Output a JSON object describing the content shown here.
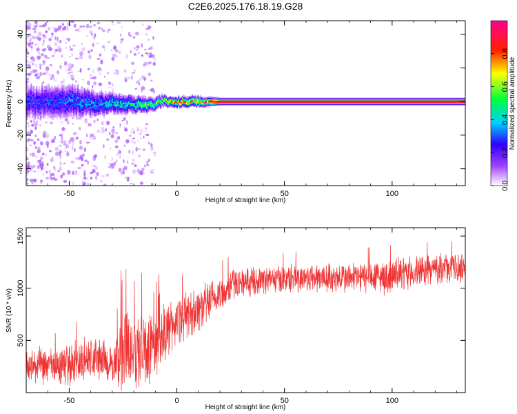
{
  "title": "C2E6.2025.176.18.19.G28",
  "colors": {
    "snr_line": "#ee3333",
    "spectrogram_background": "#ffffff",
    "axis": "#000000"
  },
  "colorbar": {
    "label": "Normalized spectral amplitude",
    "range": [
      0,
      1
    ],
    "tick_labels": [
      "0.0",
      "0.2",
      "0.4",
      "0.6",
      "0.8"
    ],
    "colormap": [
      "#ffffff",
      "#a040ff",
      "#3000ff",
      "#00d0ff",
      "#00ff40",
      "#ffff00",
      "#ff2000",
      "#ff0090"
    ]
  },
  "chart_data": [
    {
      "type": "heatmap",
      "title": "",
      "xlabel": "Height of straight line (km)",
      "ylabel": "Frequency (Hz)",
      "xlim": [
        -70,
        134
      ],
      "ylim": [
        -50,
        48
      ],
      "x_ticks": [
        "-50",
        "0",
        "50",
        "100"
      ],
      "y_ticks": [
        "-40",
        "-20",
        "0",
        "20",
        "40"
      ],
      "grid": false,
      "ridge_center_hz": 0,
      "description_points": [
        {
          "x_km": -65,
          "ridge_width_hz": 10,
          "peak_amplitude": 0.3
        },
        {
          "x_km": -50,
          "ridge_width_hz": 10,
          "peak_amplitude": 0.35
        },
        {
          "x_km": -35,
          "ridge_width_hz": 7,
          "peak_amplitude": 0.4
        },
        {
          "x_km": -20,
          "ridge_width_hz": 5,
          "peak_amplitude": 0.5
        },
        {
          "x_km": -5,
          "ridge_width_hz": 3,
          "peak_amplitude": 0.8
        },
        {
          "x_km": 10,
          "ridge_width_hz": 3,
          "peak_amplitude": 0.85
        },
        {
          "x_km": 20,
          "ridge_width_hz": 2,
          "peak_amplitude": 0.95
        },
        {
          "x_km": 134,
          "ridge_width_hz": 2,
          "peak_amplitude": 0.95
        }
      ]
    },
    {
      "type": "line",
      "title": "",
      "xlabel": "Height of straight line (km)",
      "ylabel": "SNR (10 * v/v)",
      "xlim": [
        -70,
        134
      ],
      "ylim": [
        0,
        1580
      ],
      "x_ticks": [
        "-50",
        "0",
        "50",
        "100"
      ],
      "y_ticks": [
        "500",
        "1000",
        "1500"
      ],
      "grid": false,
      "series": [
        {
          "envelope_x": [
            -70,
            -55,
            -45,
            -35,
            -30,
            -25,
            -20,
            -15,
            -10,
            -5,
            5,
            10,
            20,
            25,
            30,
            40,
            60,
            80,
            100,
            120,
            134
          ],
          "envelope_mean": [
            250,
            250,
            300,
            330,
            250,
            400,
            380,
            420,
            450,
            600,
            750,
            800,
            930,
            1030,
            1060,
            1080,
            1100,
            1100,
            1110,
            1190,
            1200
          ],
          "envelope_spread": [
            200,
            200,
            250,
            250,
            180,
            450,
            420,
            400,
            380,
            300,
            250,
            250,
            200,
            180,
            150,
            150,
            160,
            170,
            190,
            160,
            160
          ]
        }
      ]
    }
  ]
}
